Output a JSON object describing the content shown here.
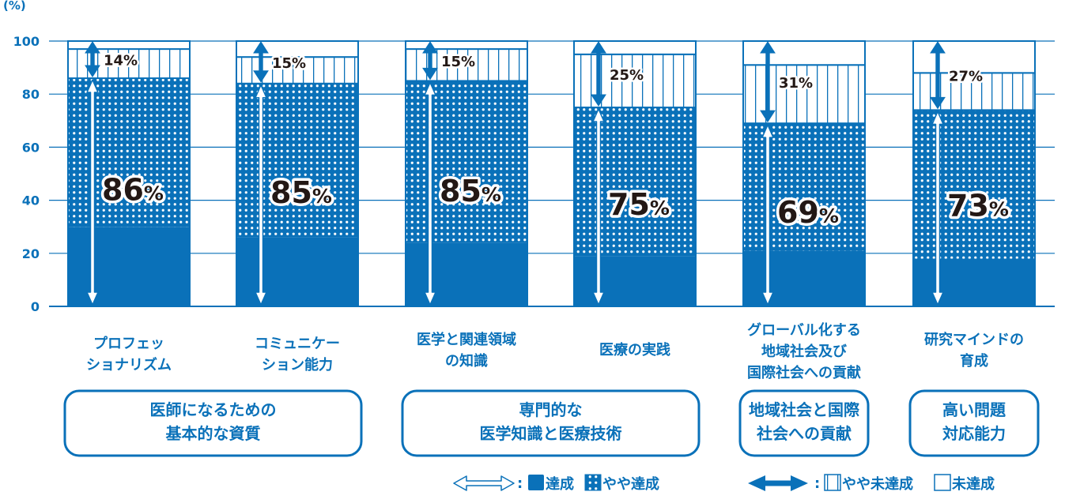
{
  "chart_data": {
    "type": "bar",
    "stacked": true,
    "yunit": "(%)",
    "ylim": [
      0,
      100
    ],
    "yticks": [
      "0",
      "20",
      "40",
      "60",
      "80",
      "100"
    ],
    "grid": true,
    "categories": [
      [
        "プロフェッ",
        "ショナリズム"
      ],
      [
        "コミュニケー",
        "ション能力"
      ],
      [
        "医学と関連領域",
        "の知識"
      ],
      [
        "医療の実践"
      ],
      [
        "グローバル化する",
        "地域社会及び",
        "国際社会への貢献"
      ],
      [
        "研究マインドの",
        "育成"
      ]
    ],
    "series": [
      {
        "name": "達成",
        "values": [
          30,
          26,
          24,
          19,
          21,
          18
        ]
      },
      {
        "name": "やや達成",
        "values": [
          56,
          58,
          61,
          56,
          48,
          56
        ]
      },
      {
        "name": "やや未達成",
        "values": [
          11,
          10,
          12,
          20,
          22,
          14
        ]
      },
      {
        "name": "未達成",
        "values": [
          3,
          6,
          3,
          5,
          9,
          12
        ]
      }
    ],
    "achieved_labels": [
      "86",
      "85",
      "85",
      "75",
      "69",
      "73"
    ],
    "not_achieved_labels": [
      "14%",
      "15%",
      "15%",
      "25%",
      "31%",
      "27%"
    ],
    "percent_sign": "%",
    "groups": [
      {
        "label": [
          "医師になるための",
          "基本的な資質"
        ],
        "span": [
          0,
          1
        ]
      },
      {
        "label": [
          "専門的な",
          "医学知識と医療技術"
        ],
        "span": [
          2,
          3
        ]
      },
      {
        "label": [
          "地域社会と国際",
          "社会への貢献"
        ],
        "span": [
          4,
          4
        ]
      },
      {
        "label": [
          "高い問題",
          "対応能力"
        ],
        "span": [
          5,
          5
        ]
      }
    ],
    "legend": {
      "placement": "bottom-right",
      "colon": ":",
      "outline_arrow_items": [
        "達成",
        "やや達成"
      ],
      "filled_arrow_items": [
        "やや未達成",
        "未達成"
      ]
    },
    "colors": {
      "primary": "#0a71b9",
      "grid": "#0a71b9",
      "background": "#ffffff",
      "text_dark": "#231815"
    }
  }
}
